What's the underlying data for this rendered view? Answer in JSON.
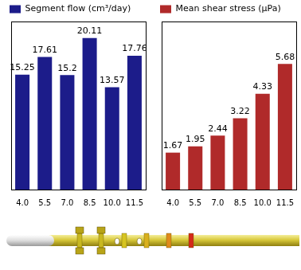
{
  "chart_data": [
    {
      "type": "bar",
      "categories": [
        "4.0",
        "5.5",
        "7.0",
        "8.5",
        "10.0",
        "11.5"
      ],
      "series": [
        {
          "name": "Segment flow (cm³/day)",
          "color": "#1c1c8a",
          "values": [
            15.25,
            17.61,
            15.2,
            20.11,
            13.57,
            17.76
          ]
        }
      ],
      "ylim": [
        0,
        22.3
      ],
      "grid": false,
      "legend": "top",
      "data_labels": true,
      "tick_labels": "x"
    },
    {
      "type": "bar",
      "categories": [
        "4.0",
        "5.5",
        "7.0",
        "8.5",
        "10.0",
        "11.5"
      ],
      "series": [
        {
          "name": "Mean shear stress (μPa)",
          "color": "#b02a2a",
          "values": [
            1.67,
            1.95,
            2.44,
            3.22,
            4.33,
            5.68
          ]
        }
      ],
      "ylim": [
        0,
        7.6
      ],
      "grid": false,
      "legend": "top",
      "data_labels": true,
      "tick_labels": "x"
    }
  ]
}
